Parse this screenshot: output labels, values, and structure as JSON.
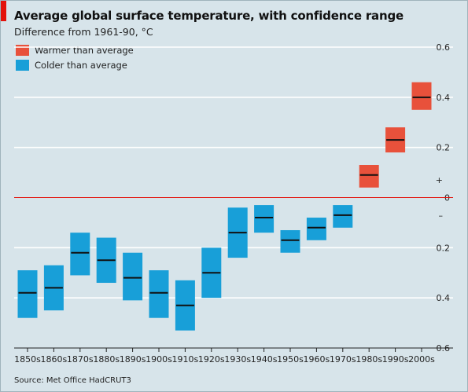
{
  "header": {
    "title": "Average global surface temperature, with confidence range",
    "subtitle": "Difference from 1961-90, °C"
  },
  "legend": [
    {
      "label": "Warmer than average",
      "color": "#e8513b"
    },
    {
      "label": "Colder than average",
      "color": "#189fd8"
    }
  ],
  "source": "Source: Met Office HadCRUT3",
  "colors": {
    "background": "#d7e4ea",
    "zero_line": "#e3120b",
    "median": "#111111"
  },
  "chart_data": {
    "type": "box",
    "title": "Average global surface temperature, with confidence range",
    "subtitle": "Difference from 1961-90, °C",
    "ylim": [
      -0.6,
      0.6
    ],
    "y_ticks": [
      {
        "value": 0.6,
        "label": "0.6"
      },
      {
        "value": 0.4,
        "label": "0.4"
      },
      {
        "value": 0.2,
        "label": "0.2"
      },
      {
        "value": 0.0,
        "label": "0"
      },
      {
        "value": -0.2,
        "label": "0.2"
      },
      {
        "value": -0.4,
        "label": "0.4"
      },
      {
        "value": -0.6,
        "label": "0.6"
      }
    ],
    "sign_labels": {
      "plus": "+",
      "minus": "–",
      "plus_value": 0.07,
      "minus_value": -0.07
    },
    "grid": true,
    "categories": [
      "1850s",
      "1860s",
      "1870s",
      "1880s",
      "1890s",
      "1900s",
      "1910s",
      "1920s",
      "1930s",
      "1940s",
      "1950s",
      "1960s",
      "1970s",
      "1980s",
      "1990s",
      "2000s"
    ],
    "series": [
      {
        "name": "Colder than average",
        "color": "#189fd8",
        "low": [
          -0.48,
          -0.45,
          -0.31,
          -0.34,
          -0.41,
          -0.48,
          -0.53,
          -0.4,
          -0.24,
          -0.14,
          -0.22,
          -0.17,
          -0.12,
          null,
          null,
          null
        ],
        "median": [
          -0.38,
          -0.36,
          -0.22,
          -0.25,
          -0.32,
          -0.38,
          -0.43,
          -0.3,
          -0.14,
          -0.08,
          -0.17,
          -0.12,
          -0.07,
          null,
          null,
          null
        ],
        "high": [
          -0.29,
          -0.27,
          -0.14,
          -0.16,
          -0.22,
          -0.29,
          -0.33,
          -0.2,
          -0.04,
          -0.03,
          -0.13,
          -0.08,
          -0.03,
          null,
          null,
          null
        ]
      },
      {
        "name": "Warmer than average",
        "color": "#e8513b",
        "low": [
          null,
          null,
          null,
          null,
          null,
          null,
          null,
          null,
          null,
          null,
          null,
          null,
          null,
          0.04,
          0.18,
          0.35
        ],
        "median": [
          null,
          null,
          null,
          null,
          null,
          null,
          null,
          null,
          null,
          null,
          null,
          null,
          null,
          0.09,
          0.23,
          0.4
        ],
        "high": [
          null,
          null,
          null,
          null,
          null,
          null,
          null,
          null,
          null,
          null,
          null,
          null,
          null,
          0.13,
          0.28,
          0.46
        ]
      }
    ]
  }
}
